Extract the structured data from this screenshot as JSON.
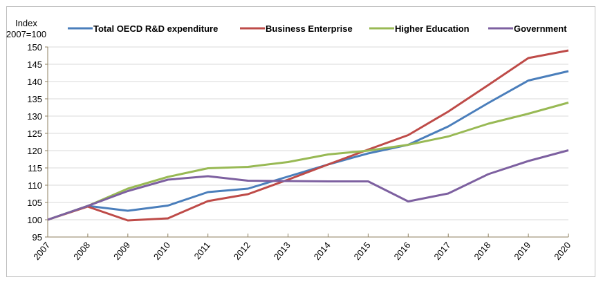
{
  "chart_data": {
    "type": "line",
    "title": "",
    "ylabel": "Index\n2007=100",
    "ylabel_lines": [
      "Index",
      "2007=100"
    ],
    "xlabel": "",
    "ylim": [
      95,
      150
    ],
    "yticks": [
      95,
      100,
      105,
      110,
      115,
      120,
      125,
      130,
      135,
      140,
      145,
      150
    ],
    "grid": true,
    "legend_position": "top",
    "x": [
      "2007",
      "2008",
      "2009",
      "2010",
      "2011",
      "2012",
      "2013",
      "2014",
      "2015",
      "2016",
      "2017",
      "2018",
      "2019",
      "2020"
    ],
    "series": [
      {
        "name": "Total OECD R&D expenditure",
        "color": "#4a7ebb",
        "values": [
          100,
          104.0,
          102.6,
          104.1,
          108.0,
          109.0,
          112.5,
          116.0,
          119.2,
          121.7,
          127.0,
          133.8,
          140.3,
          143.0
        ]
      },
      {
        "name": "Business Enterprise",
        "color": "#be4b48",
        "values": [
          100,
          103.8,
          99.8,
          100.4,
          105.4,
          107.4,
          111.6,
          116.0,
          120.3,
          124.5,
          131.3,
          139.0,
          146.8,
          149.0
        ]
      },
      {
        "name": "Higher Education",
        "color": "#98b954",
        "values": [
          100,
          104.0,
          109.0,
          112.4,
          114.9,
          115.3,
          116.7,
          118.9,
          120.0,
          121.7,
          124.1,
          127.8,
          130.7,
          133.9
        ]
      },
      {
        "name": "Government",
        "color": "#7d60a0",
        "values": [
          100,
          104.0,
          108.3,
          111.6,
          112.6,
          111.3,
          111.2,
          111.1,
          111.1,
          105.3,
          107.6,
          113.2,
          117.0,
          120.1
        ]
      }
    ]
  }
}
